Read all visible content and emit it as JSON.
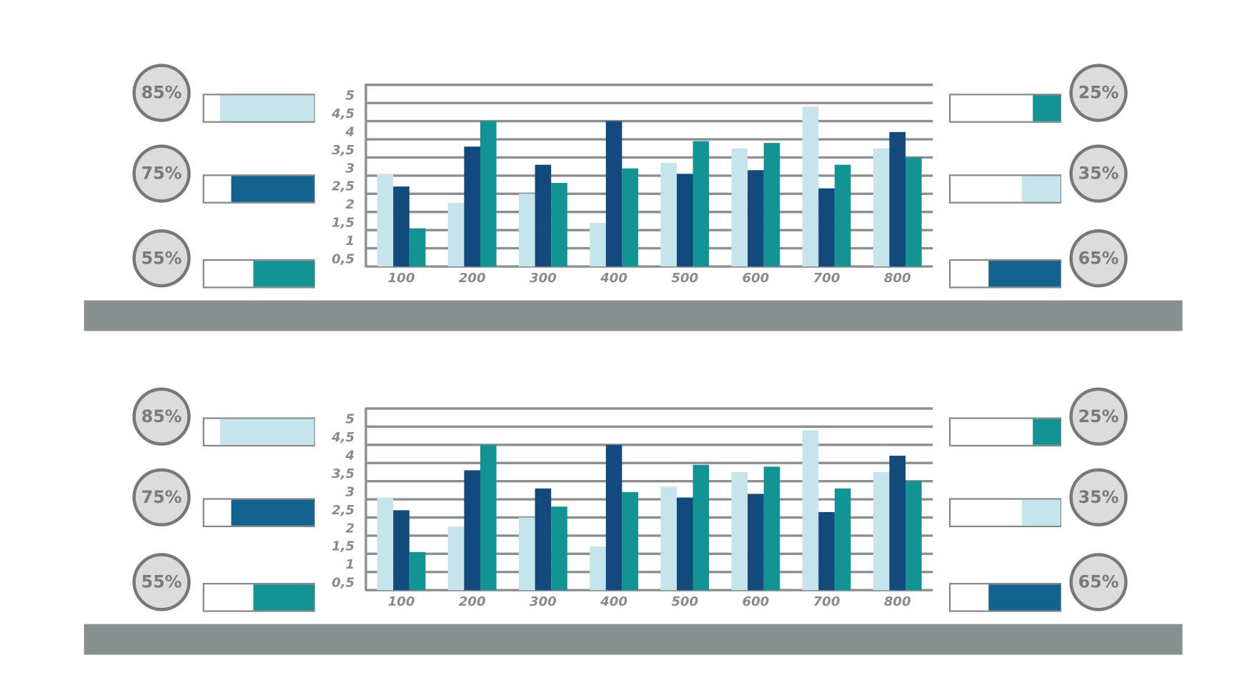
{
  "chart_data": [
    {
      "type": "bar",
      "categories": [
        "100",
        "200",
        "300",
        "400",
        "500",
        "600",
        "700",
        "800"
      ],
      "series": [
        {
          "color": "#c5e4ec",
          "values": [
            2.55,
            1.75,
            2.0,
            1.2,
            2.85,
            3.25,
            4.4,
            3.25
          ]
        },
        {
          "color": "#134a7e",
          "values": [
            2.2,
            3.3,
            2.8,
            4.0,
            2.55,
            2.65,
            2.15,
            3.7
          ]
        },
        {
          "color": "#139494",
          "values": [
            1.05,
            4.0,
            2.3,
            2.7,
            3.45,
            3.4,
            2.8,
            3.0
          ]
        }
      ],
      "ylim": [
        0,
        5
      ],
      "yticks": [
        {
          "value": 0.5,
          "label": "0,5"
        },
        1,
        {
          "value": 1.5,
          "label": "1,5"
        },
        2,
        {
          "value": 2.5,
          "label": "2,5"
        },
        3,
        {
          "value": 3.5,
          "label": "3,5"
        },
        4,
        {
          "value": 4.5,
          "label": "4,5"
        },
        5
      ],
      "grid": true
    },
    {
      "type": "bar",
      "categories": [
        "100",
        "200",
        "300",
        "400",
        "500",
        "600",
        "700",
        "800"
      ],
      "series": [
        {
          "color": "#c5e4ec",
          "values": [
            2.55,
            1.75,
            2.0,
            1.2,
            2.85,
            3.25,
            4.4,
            3.25
          ]
        },
        {
          "color": "#134a7e",
          "values": [
            2.2,
            3.3,
            2.8,
            4.0,
            2.55,
            2.65,
            2.15,
            3.7
          ]
        },
        {
          "color": "#139494",
          "values": [
            1.05,
            4.0,
            2.3,
            2.7,
            3.45,
            3.4,
            2.8,
            3.0
          ]
        }
      ],
      "ylim": [
        0,
        5
      ],
      "yticks": [
        {
          "value": 0.5,
          "label": "0,5"
        },
        1,
        {
          "value": 1.5,
          "label": "1,5"
        },
        2,
        {
          "value": 2.5,
          "label": "2,5"
        },
        3,
        {
          "value": 3.5,
          "label": "3,5"
        },
        4,
        {
          "value": 4.5,
          "label": "4,5"
        },
        5
      ],
      "grid": true
    }
  ],
  "gauges": [
    {
      "left": {
        "values": [
          85,
          75,
          55
        ],
        "value_labels": [
          "85%",
          "75%",
          "55%"
        ],
        "colors": [
          "#c5e4ec",
          "#12638f",
          "#139494"
        ]
      },
      "right": {
        "values": [
          25,
          35,
          65
        ],
        "value_labels": [
          "25%",
          "35%",
          "65%"
        ],
        "colors": [
          "#139494",
          "#c5e4ec",
          "#12638f"
        ]
      }
    },
    {
      "left": {
        "values": [
          85,
          75,
          55
        ],
        "value_labels": [
          "85%",
          "75%",
          "55%"
        ],
        "colors": [
          "#c5e4ec",
          "#12638f",
          "#139494"
        ]
      },
      "right": {
        "values": [
          25,
          35,
          65
        ],
        "value_labels": [
          "25%",
          "35%",
          "65%"
        ],
        "colors": [
          "#139494",
          "#c5e4ec",
          "#12638f"
        ]
      }
    }
  ]
}
